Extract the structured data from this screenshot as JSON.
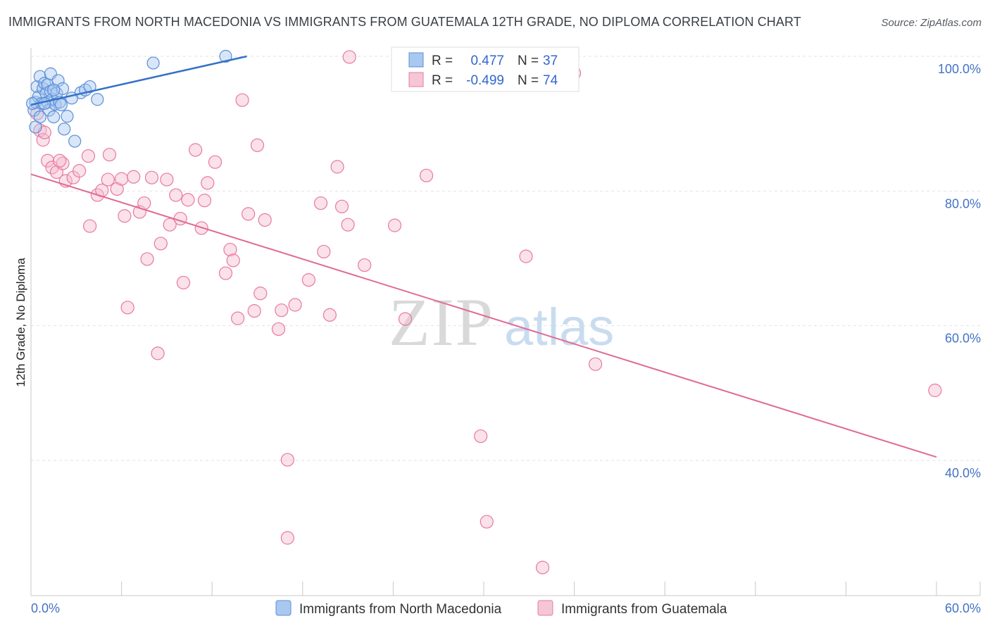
{
  "header": {
    "title": "IMMIGRANTS FROM NORTH MACEDONIA VS IMMIGRANTS FROM GUATEMALA 12TH GRADE, NO DIPLOMA CORRELATION CHART",
    "source": "Source: ZipAtlas.com"
  },
  "watermark": {
    "zip": "ZIP",
    "atlas": "atlas"
  },
  "colors": {
    "blue": "#5b8ed8",
    "blue_fill": "#a8c8f0",
    "blue_line": "#3572c6",
    "pink": "#e8799f",
    "pink_fill": "#f5bcd0",
    "pink_line": "#e06a96",
    "grid": "#e2e2e2",
    "tick_text": "#4472c4"
  },
  "chart_data": {
    "type": "scatter",
    "title": "IMMIGRANTS FROM NORTH MACEDONIA VS IMMIGRANTS FROM GUATEMALA 12TH GRADE, NO DIPLOMA CORRELATION CHART",
    "xlabel": "",
    "ylabel": "12th Grade, No Diploma",
    "xlim": [
      0,
      60
    ],
    "ylim": [
      20,
      102
    ],
    "x_tick_labels": [
      "0.0%",
      "60.0%"
    ],
    "y_ticks": [
      40,
      60,
      80,
      100
    ],
    "y_tick_labels": [
      "40.0%",
      "60.0%",
      "80.0%",
      "100.0%"
    ],
    "legend": [
      {
        "name": "Immigrants from North Macedonia",
        "r_label": "R =",
        "r_value": "0.477",
        "n_label": "N =",
        "n_value": "37"
      },
      {
        "name": "Immigrants from Guatemala",
        "r_label": "R =",
        "r_value": "-0.499",
        "n_label": "N =",
        "n_value": "74"
      }
    ],
    "series": [
      {
        "name": "Immigrants from North Macedonia",
        "trend": {
          "x": [
            0,
            14.3
          ],
          "y": [
            92.8,
            100.0
          ]
        },
        "points": [
          [
            0.2,
            92.0
          ],
          [
            0.3,
            93.2
          ],
          [
            0.4,
            95.5
          ],
          [
            0.5,
            94.0
          ],
          [
            0.6,
            97.0
          ],
          [
            0.7,
            93.0
          ],
          [
            0.8,
            95.2
          ],
          [
            0.9,
            96.0
          ],
          [
            1.0,
            94.5
          ],
          [
            1.1,
            93.2
          ],
          [
            1.1,
            95.8
          ],
          [
            1.2,
            92.0
          ],
          [
            1.3,
            97.4
          ],
          [
            1.3,
            94.8
          ],
          [
            1.4,
            93.6
          ],
          [
            1.5,
            91.0
          ],
          [
            1.6,
            92.9
          ],
          [
            1.7,
            94.5
          ],
          [
            1.8,
            96.4
          ],
          [
            1.9,
            93.2
          ],
          [
            2.0,
            92.8
          ],
          [
            2.1,
            95.2
          ],
          [
            2.2,
            89.2
          ],
          [
            2.4,
            91.1
          ],
          [
            2.9,
            87.4
          ],
          [
            3.3,
            94.6
          ],
          [
            3.6,
            95.0
          ],
          [
            3.9,
            95.5
          ],
          [
            4.4,
            93.6
          ],
          [
            8.1,
            99.0
          ],
          [
            12.9,
            100.0
          ],
          [
            0.3,
            89.5
          ],
          [
            0.6,
            91.0
          ],
          [
            0.9,
            93.0
          ],
          [
            1.5,
            95.0
          ],
          [
            2.7,
            93.8
          ],
          [
            0.1,
            93.0
          ]
        ]
      },
      {
        "name": "Immigrants from Guatemala",
        "trend": {
          "x": [
            0,
            60
          ],
          "y": [
            82.5,
            40.5
          ]
        },
        "points": [
          [
            0.4,
            91.5
          ],
          [
            0.6,
            89.0
          ],
          [
            0.8,
            87.6
          ],
          [
            1.1,
            84.5
          ],
          [
            1.4,
            83.5
          ],
          [
            1.7,
            82.8
          ],
          [
            2.1,
            84.1
          ],
          [
            2.3,
            81.5
          ],
          [
            2.8,
            82.0
          ],
          [
            3.2,
            83.0
          ],
          [
            3.8,
            85.2
          ],
          [
            3.9,
            74.8
          ],
          [
            4.4,
            79.4
          ],
          [
            4.7,
            80.1
          ],
          [
            5.1,
            81.7
          ],
          [
            5.2,
            85.4
          ],
          [
            5.7,
            80.3
          ],
          [
            6.0,
            81.8
          ],
          [
            6.2,
            76.3
          ],
          [
            6.4,
            62.7
          ],
          [
            6.8,
            82.1
          ],
          [
            7.2,
            76.9
          ],
          [
            7.5,
            78.2
          ],
          [
            7.7,
            69.9
          ],
          [
            8.0,
            82.0
          ],
          [
            8.4,
            55.9
          ],
          [
            8.6,
            72.2
          ],
          [
            9.0,
            81.7
          ],
          [
            9.2,
            75.0
          ],
          [
            9.6,
            79.4
          ],
          [
            9.9,
            75.9
          ],
          [
            10.1,
            66.4
          ],
          [
            10.4,
            78.7
          ],
          [
            10.9,
            86.1
          ],
          [
            11.3,
            74.5
          ],
          [
            11.5,
            78.6
          ],
          [
            11.7,
            81.2
          ],
          [
            12.2,
            84.3
          ],
          [
            12.9,
            67.8
          ],
          [
            13.2,
            71.3
          ],
          [
            13.4,
            69.7
          ],
          [
            13.7,
            61.1
          ],
          [
            14.0,
            93.5
          ],
          [
            14.4,
            76.6
          ],
          [
            14.8,
            62.2
          ],
          [
            15.0,
            86.8
          ],
          [
            15.2,
            64.8
          ],
          [
            15.5,
            75.7
          ],
          [
            16.4,
            59.5
          ],
          [
            16.6,
            62.3
          ],
          [
            17.0,
            40.1
          ],
          [
            17.0,
            28.5
          ],
          [
            17.5,
            63.1
          ],
          [
            18.4,
            66.8
          ],
          [
            19.2,
            78.2
          ],
          [
            19.4,
            71.0
          ],
          [
            19.8,
            61.6
          ],
          [
            20.3,
            83.6
          ],
          [
            20.6,
            77.7
          ],
          [
            21.0,
            75.0
          ],
          [
            21.1,
            99.9
          ],
          [
            22.1,
            69.0
          ],
          [
            24.1,
            74.9
          ],
          [
            24.8,
            61.0
          ],
          [
            26.2,
            82.3
          ],
          [
            29.8,
            43.6
          ],
          [
            30.2,
            30.9
          ],
          [
            32.8,
            70.3
          ],
          [
            33.9,
            24.1
          ],
          [
            36.0,
            97.5
          ],
          [
            37.4,
            54.3
          ],
          [
            59.9,
            50.4
          ],
          [
            0.9,
            88.7
          ],
          [
            1.9,
            84.5
          ]
        ]
      }
    ]
  }
}
